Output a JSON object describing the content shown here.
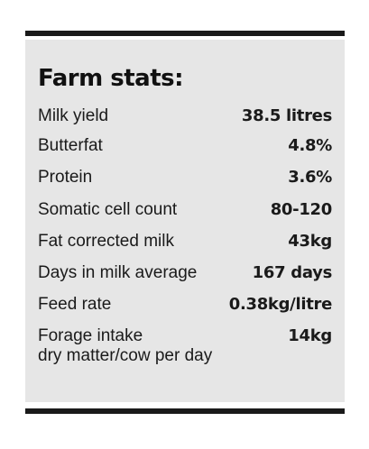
{
  "title": "Farm stats:",
  "stats": [
    {
      "label": "Milk yield",
      "value": "38.5 litres"
    },
    {
      "label": "Butterfat",
      "value": "4.8%"
    },
    {
      "label": "Protein",
      "value": "3.6%"
    },
    {
      "label": "Somatic cell count",
      "value": "80-120"
    },
    {
      "label": "Fat corrected milk",
      "value": "43kg"
    },
    {
      "label": "Days in milk average",
      "value": "167 days"
    },
    {
      "label": "Feed rate",
      "value": "0.38kg/litre"
    },
    {
      "label": "Forage intake",
      "label_line2": "dry matter/cow per day",
      "value": "14kg"
    }
  ]
}
